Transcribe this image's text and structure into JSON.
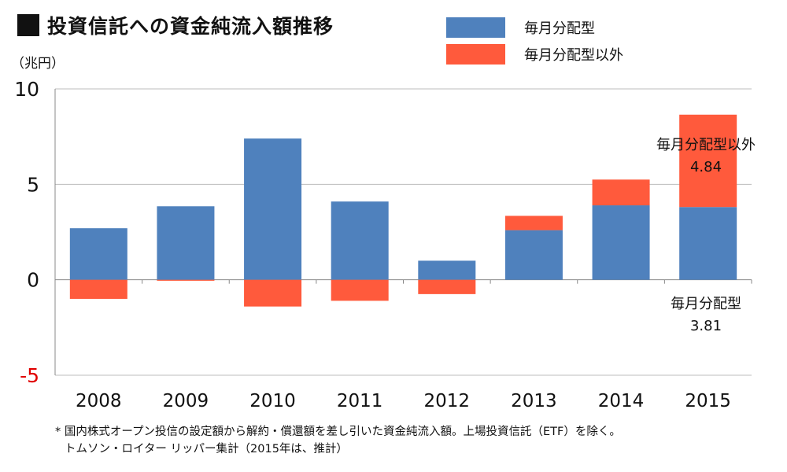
{
  "title": "投資信託への資金純流入額推移",
  "unit": "（兆円）",
  "legend": [
    {
      "label": "毎月分配型",
      "color": "#4F81BD"
    },
    {
      "label": "毎月分配型以外",
      "color": "#FF5A3C"
    }
  ],
  "annotations": {
    "other_label": "毎月分配型以外",
    "other_value": "4.84",
    "monthly_label": "毎月分配型",
    "monthly_value": "3.81"
  },
  "notes": {
    "line1": "* 国内株式オープン投信の設定額から解約・償還額を差し引いた資金純流入額。上場投資信託（ETF）を除く。",
    "line2": "トムソン・ロイター リッパー集計（2015年は、推計）"
  },
  "chart_data": {
    "type": "bar",
    "stacked": true,
    "categories": [
      "2008",
      "2009",
      "2010",
      "2011",
      "2012",
      "2013",
      "2014",
      "2015"
    ],
    "series": [
      {
        "name": "毎月分配型",
        "color": "#4F81BD",
        "values": [
          2.7,
          3.85,
          7.4,
          4.1,
          1.0,
          2.6,
          3.9,
          3.81
        ]
      },
      {
        "name": "毎月分配型以外",
        "color": "#FF5A3C",
        "values": [
          -1.0,
          -0.05,
          -1.4,
          -1.1,
          -0.75,
          0.75,
          1.35,
          4.84
        ]
      }
    ],
    "ylim": [
      -5,
      10
    ],
    "yticks": [
      {
        "value": 10,
        "label": "10",
        "color": "#111111"
      },
      {
        "value": 5,
        "label": "5",
        "color": "#111111"
      },
      {
        "value": 0,
        "label": "0",
        "color": "#111111"
      },
      {
        "value": -5,
        "label": "-5",
        "color": "#E00000"
      }
    ],
    "grid": true
  }
}
